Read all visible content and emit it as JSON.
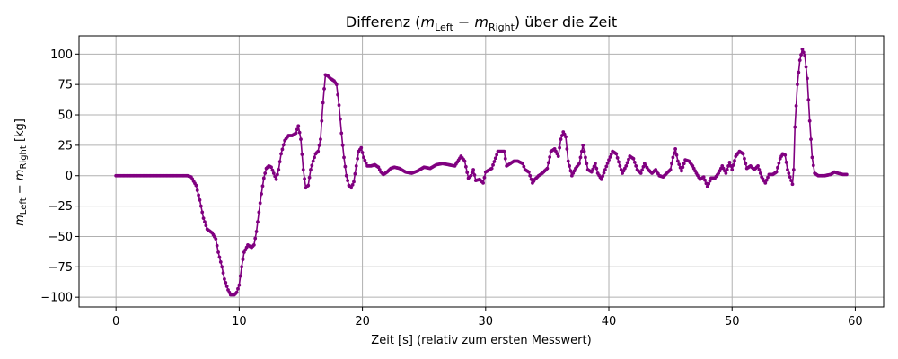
{
  "chart_data": {
    "type": "line",
    "title": "Differenz (m_Left − m_Right) über die Zeit",
    "title_parts": {
      "prefix": "Differenz (",
      "m": "m",
      "sub_left": "Left",
      "minus": " − ",
      "sub_right": "Right",
      "suffix": ") über die Zeit"
    },
    "xlabel": "Zeit [s] (relativ zum ersten Messwert)",
    "ylabel": "m_Left − m_Right [kg]",
    "ylabel_parts": {
      "m": "m",
      "sub_left": "Left",
      "minus": " − ",
      "sub_right": "Right",
      "unit": " [kg]"
    },
    "xlim": [
      -3,
      62.3
    ],
    "ylim": [
      -108,
      115
    ],
    "x_ticks": [
      0,
      10,
      20,
      30,
      40,
      50,
      60
    ],
    "y_ticks": [
      -100,
      -75,
      -50,
      -25,
      0,
      25,
      50,
      75,
      100
    ],
    "grid": true,
    "color": "#800080",
    "marker": "circle",
    "series": [
      {
        "points": [
          [
            0,
            0
          ],
          [
            5.8,
            0
          ],
          [
            6.1,
            -1
          ],
          [
            6.5,
            -8
          ],
          [
            6.8,
            -20
          ],
          [
            7.1,
            -35
          ],
          [
            7.4,
            -44
          ],
          [
            7.8,
            -47
          ],
          [
            8.1,
            -52
          ],
          [
            8.3,
            -63
          ],
          [
            8.6,
            -75
          ],
          [
            8.8,
            -85
          ],
          [
            9.1,
            -94
          ],
          [
            9.3,
            -98
          ],
          [
            9.6,
            -98
          ],
          [
            9.8,
            -96
          ],
          [
            10.0,
            -90
          ],
          [
            10.2,
            -75
          ],
          [
            10.4,
            -63
          ],
          [
            10.7,
            -57
          ],
          [
            11.0,
            -59
          ],
          [
            11.2,
            -57
          ],
          [
            11.4,
            -46
          ],
          [
            11.6,
            -30
          ],
          [
            11.8,
            -15
          ],
          [
            12.0,
            -2
          ],
          [
            12.2,
            6
          ],
          [
            12.4,
            8
          ],
          [
            12.6,
            7
          ],
          [
            12.8,
            2
          ],
          [
            13.0,
            -3
          ],
          [
            13.2,
            5
          ],
          [
            13.4,
            18
          ],
          [
            13.7,
            29
          ],
          [
            14.0,
            33
          ],
          [
            14.3,
            33
          ],
          [
            14.6,
            35
          ],
          [
            14.8,
            41
          ],
          [
            15.0,
            30
          ],
          [
            15.2,
            5
          ],
          [
            15.4,
            -10
          ],
          [
            15.6,
            -8
          ],
          [
            15.8,
            5
          ],
          [
            16.0,
            12
          ],
          [
            16.2,
            18
          ],
          [
            16.4,
            20
          ],
          [
            16.6,
            30
          ],
          [
            16.8,
            60
          ],
          [
            17.0,
            83
          ],
          [
            17.2,
            82
          ],
          [
            17.4,
            80
          ],
          [
            17.7,
            78
          ],
          [
            17.9,
            75
          ],
          [
            18.1,
            58
          ],
          [
            18.3,
            35
          ],
          [
            18.5,
            15
          ],
          [
            18.7,
            0
          ],
          [
            18.9,
            -8
          ],
          [
            19.1,
            -10
          ],
          [
            19.3,
            -5
          ],
          [
            19.5,
            8
          ],
          [
            19.7,
            20
          ],
          [
            19.9,
            23
          ],
          [
            20.1,
            15
          ],
          [
            20.4,
            8
          ],
          [
            20.7,
            8
          ],
          [
            21.0,
            9
          ],
          [
            21.3,
            7
          ],
          [
            21.5,
            3
          ],
          [
            21.7,
            1
          ],
          [
            22.0,
            3
          ],
          [
            22.3,
            6
          ],
          [
            22.6,
            7
          ],
          [
            23.0,
            6
          ],
          [
            23.5,
            3
          ],
          [
            24.0,
            2
          ],
          [
            24.5,
            4
          ],
          [
            25.0,
            7
          ],
          [
            25.5,
            6
          ],
          [
            26.0,
            9
          ],
          [
            26.5,
            10
          ],
          [
            27.0,
            9
          ],
          [
            27.5,
            8
          ],
          [
            28.0,
            16
          ],
          [
            28.3,
            12
          ],
          [
            28.6,
            -2
          ],
          [
            28.8,
            0
          ],
          [
            29.0,
            5
          ],
          [
            29.2,
            -4
          ],
          [
            29.5,
            -3
          ],
          [
            29.8,
            -6
          ],
          [
            30.0,
            3
          ],
          [
            30.5,
            6
          ],
          [
            31.0,
            20
          ],
          [
            31.5,
            20
          ],
          [
            31.7,
            8
          ],
          [
            32.0,
            10
          ],
          [
            32.3,
            12
          ],
          [
            32.6,
            12
          ],
          [
            33.0,
            10
          ],
          [
            33.2,
            5
          ],
          [
            33.5,
            3
          ],
          [
            33.8,
            -6
          ],
          [
            34.0,
            -3
          ],
          [
            34.3,
            0
          ],
          [
            34.6,
            2
          ],
          [
            35.0,
            6
          ],
          [
            35.3,
            20
          ],
          [
            35.6,
            22
          ],
          [
            35.9,
            16
          ],
          [
            36.1,
            30
          ],
          [
            36.3,
            36
          ],
          [
            36.5,
            32
          ],
          [
            36.7,
            12
          ],
          [
            37.0,
            0
          ],
          [
            37.3,
            6
          ],
          [
            37.6,
            10
          ],
          [
            37.9,
            25
          ],
          [
            38.1,
            15
          ],
          [
            38.3,
            5
          ],
          [
            38.6,
            3
          ],
          [
            38.9,
            10
          ],
          [
            39.1,
            2
          ],
          [
            39.4,
            -3
          ],
          [
            39.7,
            5
          ],
          [
            40.0,
            13
          ],
          [
            40.3,
            20
          ],
          [
            40.6,
            18
          ],
          [
            40.9,
            8
          ],
          [
            41.1,
            2
          ],
          [
            41.4,
            8
          ],
          [
            41.7,
            16
          ],
          [
            42.0,
            14
          ],
          [
            42.3,
            5
          ],
          [
            42.6,
            2
          ],
          [
            42.9,
            10
          ],
          [
            43.2,
            5
          ],
          [
            43.5,
            2
          ],
          [
            43.8,
            5
          ],
          [
            44.1,
            0
          ],
          [
            44.4,
            -1
          ],
          [
            44.7,
            2
          ],
          [
            45.0,
            5
          ],
          [
            45.2,
            15
          ],
          [
            45.4,
            22
          ],
          [
            45.6,
            12
          ],
          [
            45.9,
            4
          ],
          [
            46.2,
            13
          ],
          [
            46.5,
            12
          ],
          [
            46.8,
            8
          ],
          [
            47.1,
            2
          ],
          [
            47.4,
            -3
          ],
          [
            47.7,
            -1
          ],
          [
            48.0,
            -9
          ],
          [
            48.3,
            -2
          ],
          [
            48.6,
            -2
          ],
          [
            48.9,
            2
          ],
          [
            49.2,
            8
          ],
          [
            49.5,
            2
          ],
          [
            49.8,
            11
          ],
          [
            50.0,
            5
          ],
          [
            50.3,
            16
          ],
          [
            50.6,
            20
          ],
          [
            50.9,
            18
          ],
          [
            51.2,
            6
          ],
          [
            51.5,
            8
          ],
          [
            51.8,
            5
          ],
          [
            52.1,
            8
          ],
          [
            52.4,
            -1
          ],
          [
            52.7,
            -6
          ],
          [
            53.0,
            1
          ],
          [
            53.3,
            1
          ],
          [
            53.6,
            3
          ],
          [
            53.9,
            14
          ],
          [
            54.1,
            18
          ],
          [
            54.3,
            17
          ],
          [
            54.5,
            5
          ],
          [
            54.7,
            -1
          ],
          [
            54.9,
            -7
          ],
          [
            55.0,
            5
          ],
          [
            55.1,
            40
          ],
          [
            55.3,
            75
          ],
          [
            55.5,
            95
          ],
          [
            55.7,
            104
          ],
          [
            55.9,
            99
          ],
          [
            56.1,
            80
          ],
          [
            56.3,
            45
          ],
          [
            56.5,
            15
          ],
          [
            56.7,
            2
          ],
          [
            57.0,
            0
          ],
          [
            57.5,
            0
          ],
          [
            58.0,
            1
          ],
          [
            58.3,
            3
          ],
          [
            58.6,
            2
          ],
          [
            59.0,
            1
          ],
          [
            59.3,
            1
          ]
        ]
      }
    ]
  }
}
